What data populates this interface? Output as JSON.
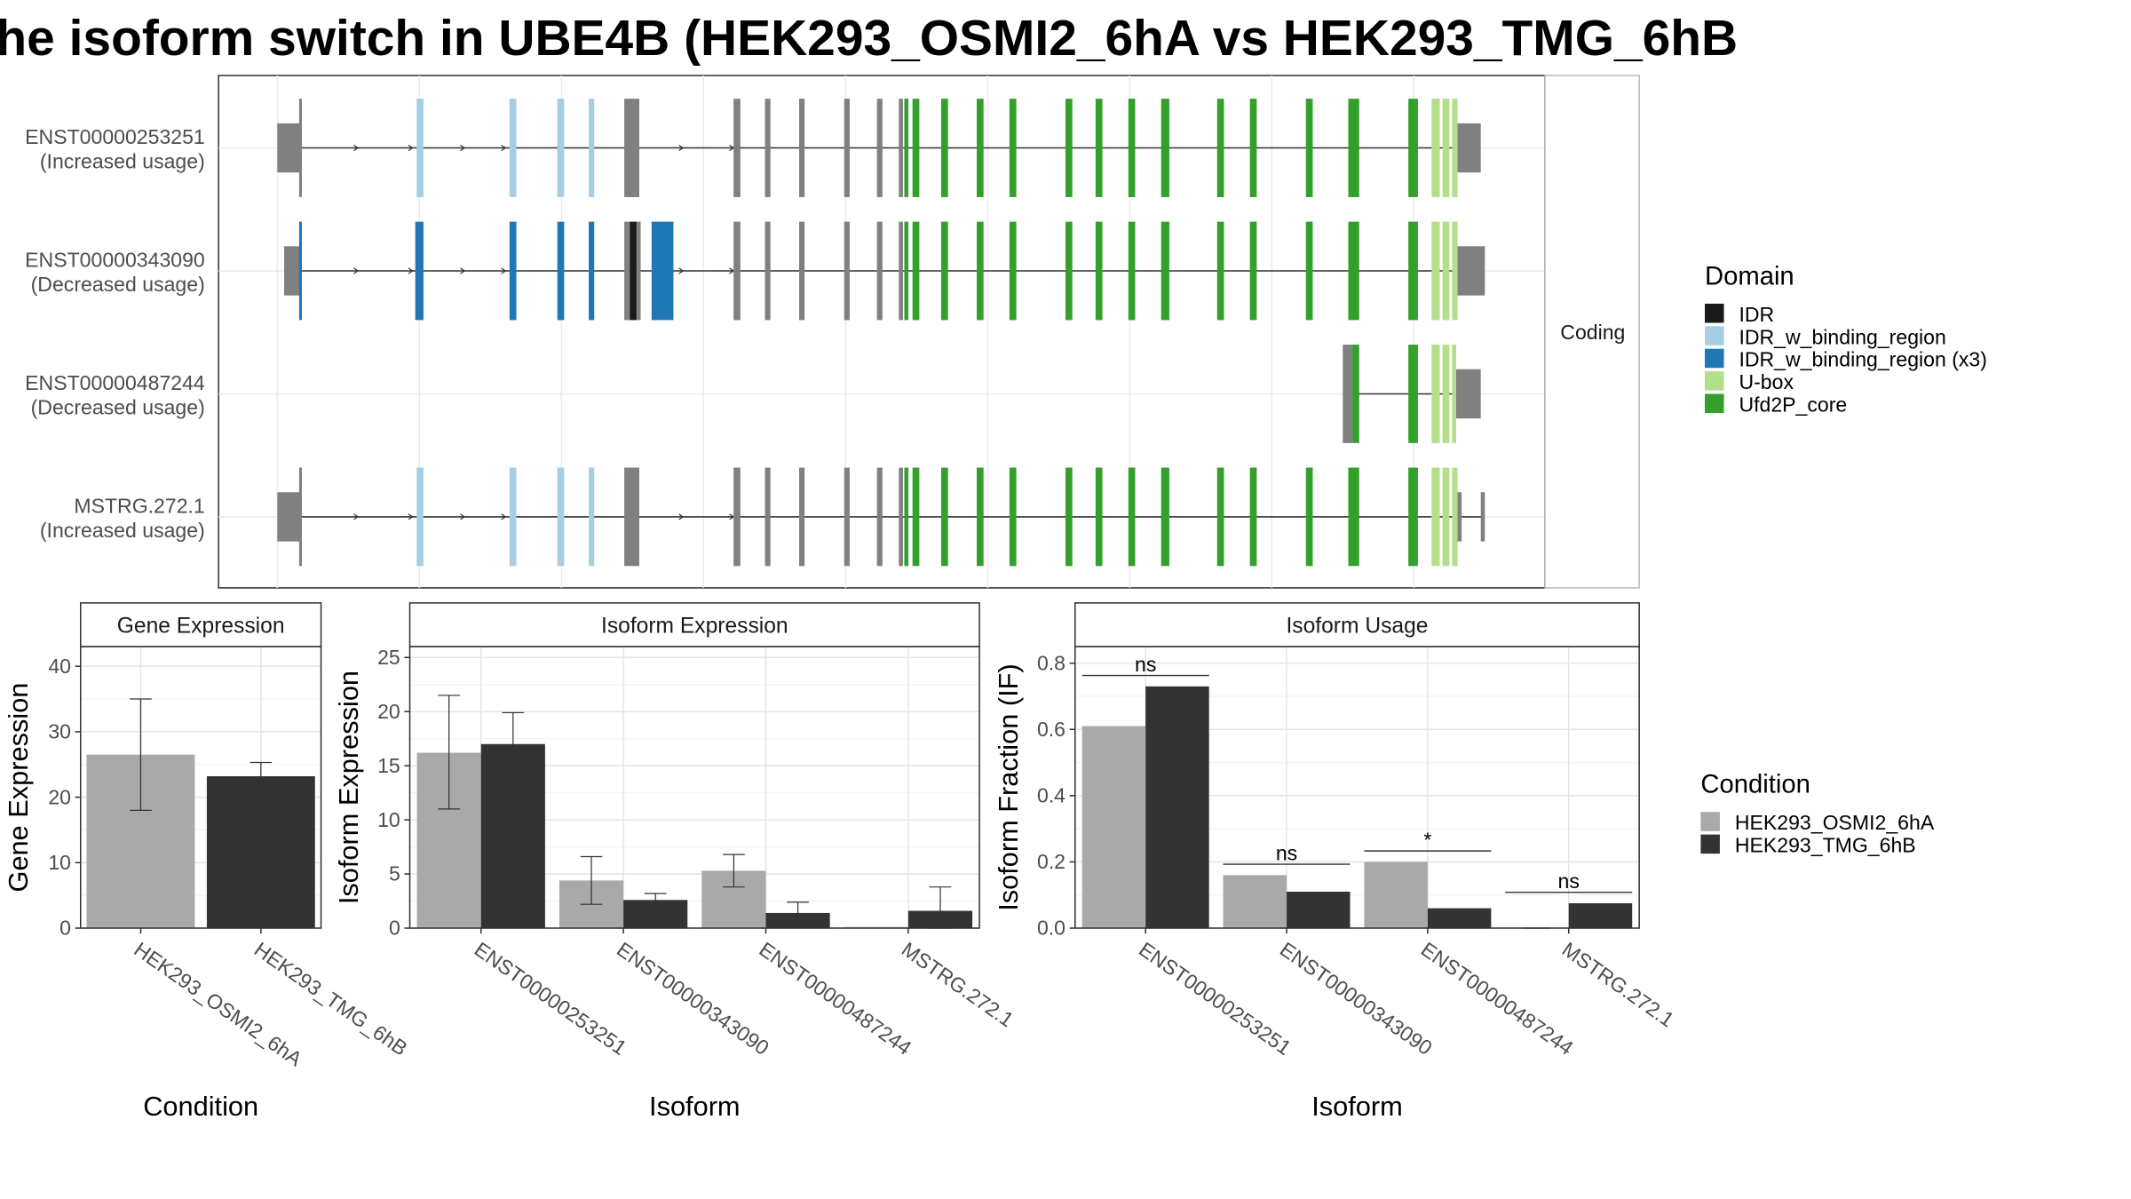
{
  "title": "he isoform switch in UBE4B (HEK293_OSMI2_6hA vs HEK293_TMG_6hB",
  "colors": {
    "condA": "#a9a9a9",
    "condB": "#333333",
    "utr": "#808080",
    "IDR": "#1a1a1a",
    "IDR_w_binding_region": "#a6cee3",
    "IDR_w_binding_region_x3": "#1f78b4",
    "U-box": "#b2df8a",
    "Ufd2P_core": "#33a02c"
  },
  "transcripts": {
    "strip_label": "Coding",
    "rows": [
      {
        "id": "ENST00000253251",
        "status": "(Increased usage)"
      },
      {
        "id": "ENST00000343090",
        "status": "(Decreased usage)"
      },
      {
        "id": "ENST00000487244",
        "status": "(Decreased usage)"
      },
      {
        "id": "MSTRG.272.1",
        "status": "(Increased usage)"
      }
    ]
  },
  "legend_domain": {
    "title": "Domain",
    "items": [
      {
        "label": "IDR",
        "color": "#1a1a1a"
      },
      {
        "label": "IDR_w_binding_region",
        "color": "#a6cee3"
      },
      {
        "label": "IDR_w_binding_region (x3)",
        "color": "#1f78b4"
      },
      {
        "label": "U-box",
        "color": "#b2df8a"
      },
      {
        "label": "Ufd2P_core",
        "color": "#33a02c"
      }
    ]
  },
  "legend_condition": {
    "title": "Condition",
    "items": [
      {
        "label": "HEK293_OSMI2_6hA",
        "color": "#a9a9a9"
      },
      {
        "label": "HEK293_TMG_6hB",
        "color": "#333333"
      }
    ]
  },
  "chart_data": [
    {
      "type": "bar",
      "title": "Gene Expression",
      "xlabel": "Condition",
      "ylabel": "Gene Expression",
      "ylim": [
        0,
        43
      ],
      "yticks": [
        "0",
        "10",
        "20",
        "30",
        "40"
      ],
      "categories": [
        "HEK293_OSMI2_6hA",
        "HEK293_TMG_6hB"
      ],
      "values": [
        26.5,
        23.2
      ],
      "error_low": [
        18.0,
        21.0
      ],
      "error_high": [
        35.0,
        25.3
      ]
    },
    {
      "type": "bar",
      "title": "Isoform Expression",
      "xlabel": "Isoform",
      "ylabel": "Isoform Expression",
      "ylim": [
        0,
        26
      ],
      "yticks": [
        "0",
        "5",
        "10",
        "15",
        "20",
        "25"
      ],
      "categories": [
        "ENST00000253251",
        "ENST00000343090",
        "ENST00000487244",
        "MSTRG.272.1"
      ],
      "series": [
        {
          "name": "HEK293_OSMI2_6hA",
          "values": [
            16.2,
            4.4,
            5.3,
            0.1
          ],
          "error_low": [
            11.0,
            2.2,
            3.8,
            0.1
          ],
          "error_high": [
            21.5,
            6.6,
            6.8,
            0.1
          ]
        },
        {
          "name": "HEK293_TMG_6hB",
          "values": [
            17.0,
            2.6,
            1.4,
            1.6
          ],
          "error_low": [
            14.0,
            2.0,
            0.6,
            0.0
          ],
          "error_high": [
            19.9,
            3.2,
            2.4,
            3.8
          ]
        }
      ]
    },
    {
      "type": "bar",
      "title": "Isoform Usage",
      "xlabel": "Isoform",
      "ylabel": "Isoform Fraction (IF)",
      "ylim": [
        0,
        0.85
      ],
      "yticks": [
        "0.0",
        "0.2",
        "0.4",
        "0.6",
        "0.8"
      ],
      "categories": [
        "ENST00000253251",
        "ENST00000343090",
        "ENST00000487244",
        "MSTRG.272.1"
      ],
      "series": [
        {
          "name": "HEK293_OSMI2_6hA",
          "values": [
            0.61,
            0.16,
            0.2,
            0.0
          ]
        },
        {
          "name": "HEK293_TMG_6hB",
          "values": [
            0.73,
            0.11,
            0.06,
            0.075
          ]
        }
      ],
      "significance": [
        "ns",
        "ns",
        "*",
        "ns"
      ]
    }
  ]
}
